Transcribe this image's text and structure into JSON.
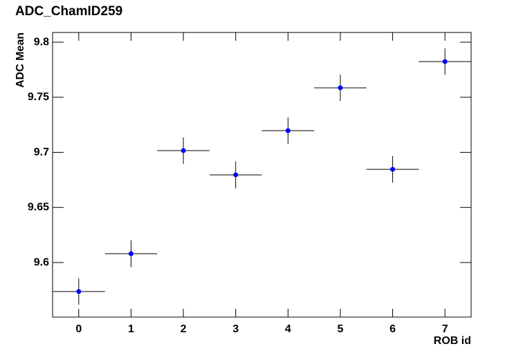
{
  "chart_data": {
    "type": "scatter",
    "title": "ADC_ChamID259",
    "x_label": "ROB id",
    "y_label": "ADC Mean",
    "x": [
      0,
      1,
      2,
      3,
      4,
      5,
      6,
      7
    ],
    "values": [
      9.5737,
      9.608,
      9.7016,
      9.6796,
      9.7197,
      9.7586,
      9.6846,
      9.7824
    ],
    "yerr": [
      0.012,
      0.0122,
      0.012,
      0.0122,
      0.012,
      0.012,
      0.012,
      0.012
    ],
    "xerr": [
      0.5,
      0.5,
      0.5,
      0.5,
      0.5,
      0.5,
      0.5,
      0.5
    ],
    "color": "#0000ff",
    "xlim": [
      -0.5,
      7.5
    ],
    "xticks": [
      0,
      1,
      2,
      3,
      4,
      5,
      6,
      7
    ],
    "ylim": [
      9.5505,
      9.8088
    ],
    "yticks": [
      9.6,
      9.65,
      9.7,
      9.75,
      9.8
    ]
  }
}
